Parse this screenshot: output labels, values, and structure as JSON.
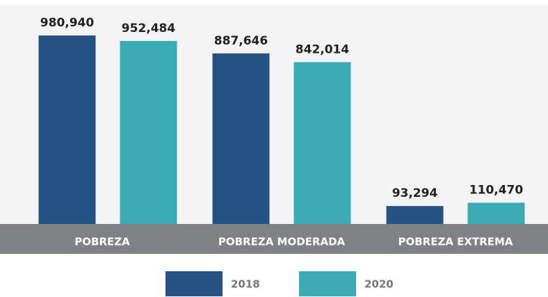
{
  "chart_data": {
    "type": "bar",
    "categories": [
      "POBREZA",
      "POBREZA MODERADA",
      "POBREZA EXTREMA"
    ],
    "series": [
      {
        "name": "2018",
        "color": "#245282",
        "values": [
          980940,
          887646,
          93294
        ],
        "value_labels": [
          "980,940",
          "887,646",
          "93,294"
        ]
      },
      {
        "name": "2020",
        "color": "#3aabb5",
        "values": [
          952484,
          842014,
          110470
        ],
        "value_labels": [
          "952,484",
          "842,014",
          "110,470"
        ]
      }
    ]
  }
}
